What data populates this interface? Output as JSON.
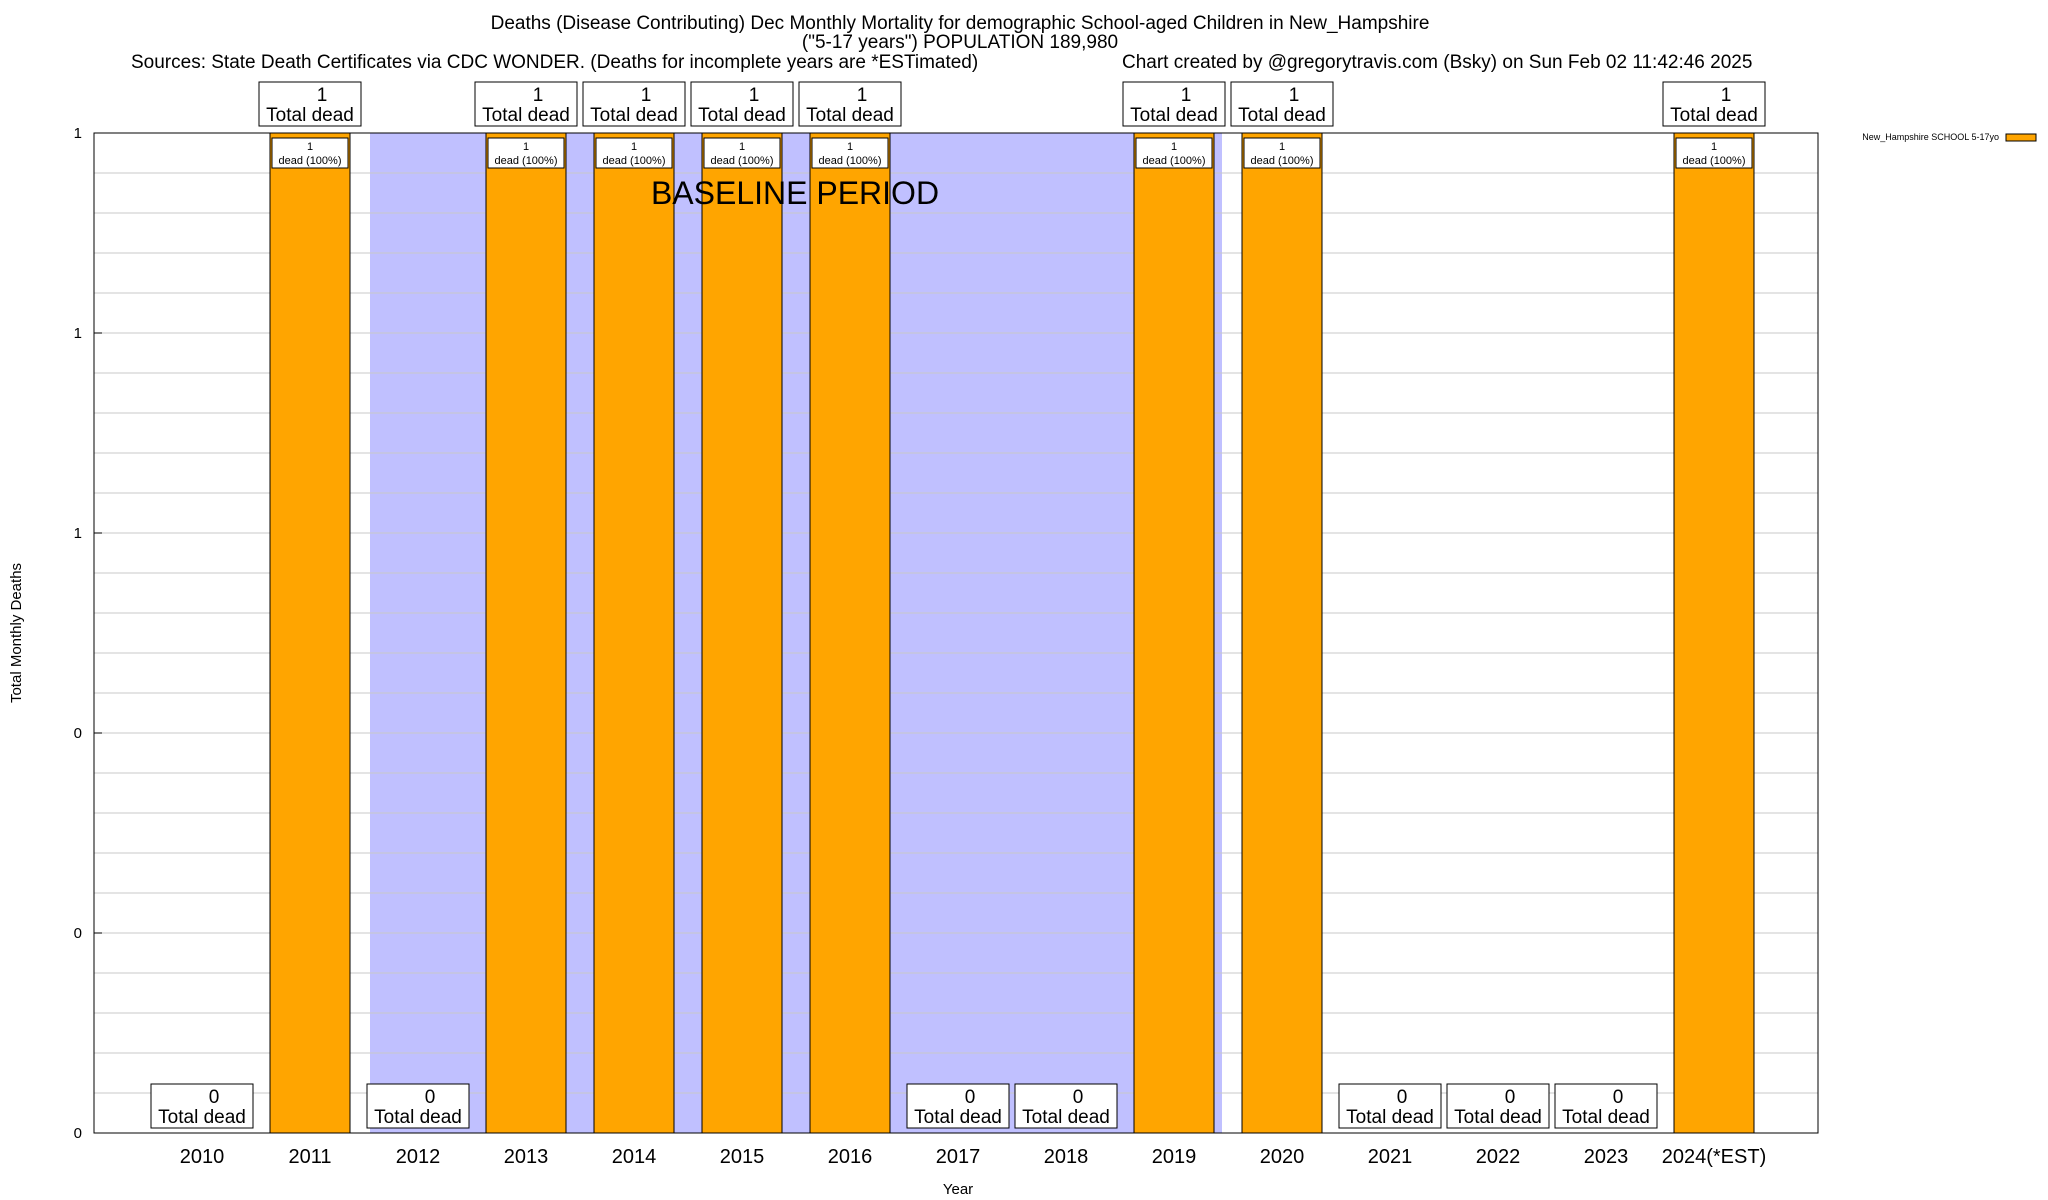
{
  "header": {
    "title_line1": "Deaths (Disease Contributing) Dec Monthly Mortality for demographic School-aged Children in New_Hampshire",
    "title_line2": "(\"5-17 years\") POPULATION 189,980",
    "sources": "Sources: State Death Certificates via CDC WONDER. (Deaths for incomplete years are *ESTimated)",
    "credit": "Chart created by @gregorytravis.com (Bsky) on Sun Feb 02 11:42:46 2025"
  },
  "chart_data": {
    "type": "bar",
    "title": "Deaths (Disease Contributing) Dec Monthly Mortality for demographic School-aged Children in New_Hampshire",
    "xlabel": "Year",
    "ylabel": "Total Monthly Deaths",
    "ylim": [
      0,
      1
    ],
    "y_tick_labels": [
      "0",
      "0",
      "0",
      "1",
      "1",
      "1"
    ],
    "categories": [
      "2010",
      "2011",
      "2012",
      "2013",
      "2014",
      "2015",
      "2016",
      "2017",
      "2018",
      "2019",
      "2020",
      "2021",
      "2022",
      "2023",
      "2024(*EST)"
    ],
    "series": [
      {
        "name": "New_Hampshire SCHOOL 5-17yo",
        "color": "#ffa500",
        "values": [
          0,
          1,
          0,
          1,
          1,
          1,
          1,
          0,
          0,
          1,
          1,
          0,
          0,
          0,
          1
        ]
      }
    ],
    "total_labels": [
      "0",
      "1",
      "0",
      "1",
      "1",
      "1",
      "1",
      "0",
      "0",
      "1",
      "1",
      "0",
      "0",
      "0",
      "1"
    ],
    "total_label_suffix": "Total dead",
    "segment_labels": [
      "",
      "1",
      "",
      "1",
      "1",
      "1",
      "1",
      "",
      "",
      "1",
      "1",
      "",
      "",
      "",
      "1"
    ],
    "segment_label_suffix": "dead (100%)",
    "baseline_period": {
      "label": "BASELINE PERIOD",
      "from": "2012",
      "to": "2019",
      "color": "#c0c0ff"
    },
    "grid": true,
    "legend": {
      "position": "top-right",
      "label": "New_Hampshire SCHOOL 5-17yo"
    }
  }
}
